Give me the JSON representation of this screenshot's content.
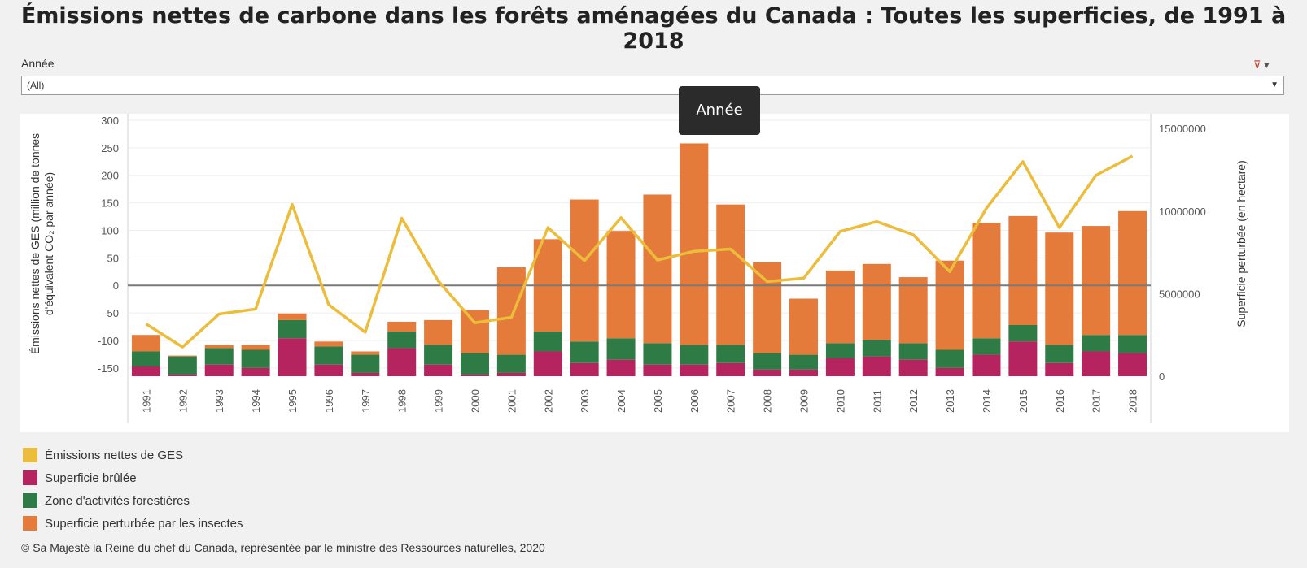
{
  "title": "Émissions nettes de carbone dans les forêts aménagées du Canada : Toutes les superficies, de 1991 à 2018",
  "filter": {
    "label": "Année",
    "value": "(All)"
  },
  "tooltip": "Année",
  "footer": "© Sa Majesté la Reine du chef du Canada, représentée par le ministre des Ressources naturelles, 2020",
  "colors": {
    "emissions": "#ecbd3c",
    "burned": "#b5245f",
    "harvest": "#2f7b45",
    "insects": "#e57b3a"
  },
  "chart_data": {
    "type": "bar",
    "stacked": true,
    "categories": [
      "1991",
      "1992",
      "1993",
      "1994",
      "1995",
      "1996",
      "1997",
      "1998",
      "1999",
      "2000",
      "2001",
      "2002",
      "2003",
      "2004",
      "2005",
      "2006",
      "2007",
      "2008",
      "2009",
      "2010",
      "2011",
      "2012",
      "2013",
      "2014",
      "2015",
      "2016",
      "2017",
      "2018"
    ],
    "y_left": {
      "label": "Émissions nettes de GES (million de tonnes d'équivalent CO₂ par année)",
      "ticks": [
        300,
        250,
        200,
        150,
        100,
        50,
        0,
        -50,
        -100,
        -150
      ],
      "range": [
        -165,
        300
      ]
    },
    "y_right": {
      "label": "Superficie perturbée (en hectare)",
      "ticks": [
        15000000,
        10000000,
        5000000,
        0
      ],
      "range": [
        0,
        15500000
      ]
    },
    "legend": [
      {
        "name": "Émissions nettes de GES",
        "color": "#ecbd3c"
      },
      {
        "name": "Superficie brûlée",
        "color": "#b5245f"
      },
      {
        "name": "Zone d'activités forestières",
        "color": "#2f7b45"
      },
      {
        "name": "Superficie perturbée par les insectes",
        "color": "#e57b3a"
      }
    ],
    "series": [
      {
        "name": "Superficie brûlée",
        "axis": "right",
        "values": [
          600000,
          100000,
          700000,
          500000,
          2300000,
          700000,
          200000,
          1700000,
          700000,
          100000,
          200000,
          1500000,
          800000,
          1000000,
          700000,
          700000,
          800000,
          400000,
          400000,
          1100000,
          1200000,
          1000000,
          500000,
          1300000,
          2100000,
          800000,
          1500000,
          1400000
        ]
      },
      {
        "name": "Zone d'activités forestières",
        "axis": "right",
        "values": [
          900000,
          1100000,
          1000000,
          1100000,
          1100000,
          1100000,
          1100000,
          1000000,
          1200000,
          1300000,
          1100000,
          1200000,
          1300000,
          1300000,
          1300000,
          1200000,
          1100000,
          1000000,
          900000,
          900000,
          1000000,
          1000000,
          1100000,
          1000000,
          1000000,
          1100000,
          1000000,
          1100000
        ]
      },
      {
        "name": "Superficie perturbée par les insectes",
        "axis": "right",
        "values": [
          1000000,
          50000,
          200000,
          300000,
          400000,
          300000,
          200000,
          600000,
          1500000,
          2600000,
          5300000,
          5600000,
          8600000,
          6500000,
          9000000,
          12200000,
          8500000,
          5500000,
          3400000,
          4400000,
          4600000,
          4000000,
          5400000,
          7000000,
          6600000,
          6800000,
          6600000,
          7500000
        ]
      },
      {
        "name": "Émissions nettes de GES",
        "axis": "left",
        "type": "line",
        "values": [
          -70,
          -112,
          -52,
          -43,
          147,
          -35,
          -85,
          122,
          8,
          -68,
          -58,
          105,
          45,
          123,
          46,
          62,
          66,
          7,
          13,
          98,
          116,
          92,
          25,
          140,
          225,
          105,
          200,
          235
        ]
      }
    ]
  }
}
